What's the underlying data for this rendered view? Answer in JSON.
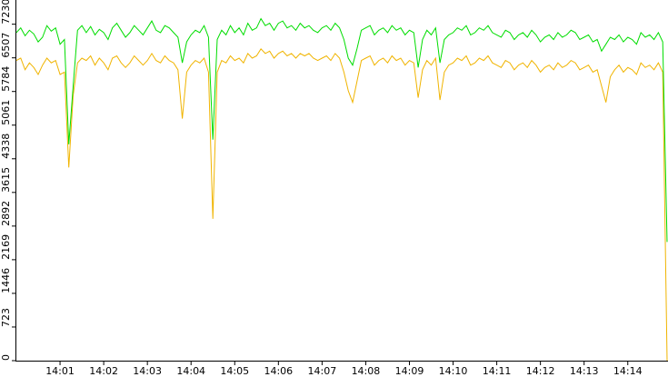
{
  "chart_data": {
    "type": "line",
    "categories": [
      null,
      null,
      null,
      null,
      null,
      null,
      null,
      null,
      null,
      null,
      "14:01",
      null,
      null,
      null,
      null,
      null,
      null,
      null,
      null,
      null,
      "14:02",
      null,
      null,
      null,
      null,
      null,
      null,
      null,
      null,
      null,
      "14:03",
      null,
      null,
      null,
      null,
      null,
      null,
      null,
      null,
      null,
      "14:04",
      null,
      null,
      null,
      null,
      null,
      null,
      null,
      null,
      null,
      "14:05",
      null,
      null,
      null,
      null,
      null,
      null,
      null,
      null,
      null,
      "14:06",
      null,
      null,
      null,
      null,
      null,
      null,
      null,
      null,
      null,
      "14:07",
      null,
      null,
      null,
      null,
      null,
      null,
      null,
      null,
      null,
      "14:08",
      null,
      null,
      null,
      null,
      null,
      null,
      null,
      null,
      null,
      "14:09",
      null,
      null,
      null,
      null,
      null,
      null,
      null,
      null,
      null,
      "14:10",
      null,
      null,
      null,
      null,
      null,
      null,
      null,
      null,
      null,
      "14:11",
      null,
      null,
      null,
      null,
      null,
      null,
      null,
      null,
      null,
      "14:12",
      null,
      null,
      null,
      null,
      null,
      null,
      null,
      null,
      null,
      "14:13",
      null,
      null,
      null,
      null,
      null,
      null,
      null,
      null,
      null,
      "14:14",
      null,
      null,
      null,
      null,
      null,
      null,
      null,
      null,
      null
    ],
    "series": [
      {
        "color": "#00dd00",
        "values": [
          7050,
          7150,
          6980,
          7100,
          7020,
          6850,
          6950,
          7200,
          7080,
          7150,
          6800,
          6900,
          4650,
          5900,
          7100,
          7200,
          7050,
          7180,
          7000,
          7120,
          7050,
          6900,
          7150,
          7250,
          7100,
          6950,
          7050,
          7200,
          7100,
          7000,
          7150,
          7300,
          7100,
          7050,
          7200,
          7150,
          7050,
          6950,
          6400,
          6850,
          7000,
          7100,
          7050,
          7200,
          6950,
          4750,
          6900,
          7100,
          7000,
          7200,
          7050,
          7150,
          7000,
          7250,
          7100,
          7150,
          7350,
          7200,
          7250,
          7100,
          7250,
          7300,
          7150,
          7200,
          7100,
          7250,
          7150,
          7200,
          7100,
          7050,
          7150,
          7200,
          7100,
          7250,
          7150,
          6900,
          6500,
          6350,
          6700,
          7100,
          7150,
          7200,
          7000,
          7100,
          7150,
          7050,
          7200,
          7100,
          7150,
          7000,
          7100,
          7050,
          6300,
          6900,
          7100,
          7000,
          7150,
          6400,
          6900,
          7000,
          7050,
          7150,
          7100,
          7200,
          7000,
          7050,
          7150,
          7100,
          7200,
          7050,
          7000,
          6950,
          7100,
          7050,
          6900,
          7000,
          7050,
          6950,
          7100,
          7000,
          6850,
          6950,
          7000,
          6900,
          7050,
          6950,
          7000,
          7100,
          7050,
          6900,
          6950,
          7000,
          6850,
          6900,
          6650,
          6800,
          6950,
          6900,
          7000,
          6850,
          6950,
          6900,
          6800,
          7050,
          6950,
          7000,
          6900,
          7050,
          6850,
          2550
        ]
      },
      {
        "color": "#f0b400",
        "values": [
          6450,
          6500,
          6250,
          6400,
          6300,
          6150,
          6350,
          6500,
          6400,
          6450,
          6150,
          6200,
          4150,
          5700,
          6400,
          6500,
          6450,
          6550,
          6350,
          6500,
          6400,
          6250,
          6500,
          6550,
          6400,
          6300,
          6400,
          6550,
          6450,
          6350,
          6450,
          6600,
          6450,
          6400,
          6550,
          6450,
          6400,
          6250,
          5200,
          6200,
          6350,
          6450,
          6400,
          6500,
          6200,
          3050,
          6200,
          6450,
          6400,
          6550,
          6450,
          6500,
          6400,
          6600,
          6500,
          6550,
          6700,
          6600,
          6650,
          6500,
          6600,
          6650,
          6550,
          6600,
          6500,
          6600,
          6550,
          6600,
          6500,
          6450,
          6500,
          6550,
          6450,
          6600,
          6500,
          6200,
          5800,
          5550,
          6000,
          6450,
          6500,
          6550,
          6350,
          6450,
          6500,
          6400,
          6550,
          6450,
          6500,
          6350,
          6450,
          6400,
          5650,
          6250,
          6450,
          6350,
          6500,
          5600,
          6200,
          6350,
          6400,
          6500,
          6450,
          6550,
          6350,
          6400,
          6500,
          6450,
          6550,
          6400,
          6350,
          6300,
          6450,
          6400,
          6250,
          6350,
          6400,
          6300,
          6450,
          6350,
          6200,
          6300,
          6350,
          6250,
          6400,
          6300,
          6350,
          6450,
          6400,
          6250,
          6300,
          6350,
          6200,
          6250,
          5900,
          5550,
          6100,
          6250,
          6350,
          6200,
          6300,
          6250,
          6150,
          6400,
          6300,
          6350,
          6250,
          6400,
          6200,
          0
        ]
      }
    ],
    "ylim": [
      0,
      7750
    ],
    "yticks": [
      0,
      723,
      1446,
      2169,
      2892,
      3615,
      4338,
      5061,
      5784,
      6507,
      7230
    ]
  }
}
